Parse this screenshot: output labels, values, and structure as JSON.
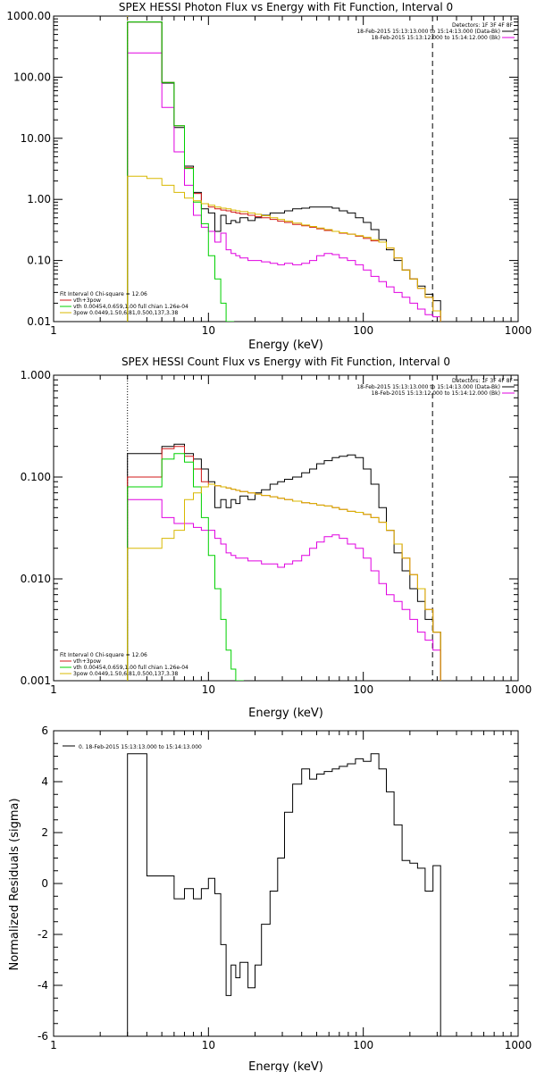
{
  "colors": {
    "black": "#000000",
    "red": "#d01818",
    "magenta": "#e000e0",
    "green": "#00d000",
    "yellow": "#d8b800",
    "background": "#ffffff"
  },
  "chart_data": [
    {
      "type": "line",
      "title": "SPEX HESSI Photon Flux vs Energy with Fit Function, Interval 0",
      "xlabel": "Energy (keV)",
      "ylabel": "",
      "xscale": "log",
      "yscale": "log",
      "xlim": [
        1,
        1000
      ],
      "ylim": [
        0.01,
        1000
      ],
      "xtick_labels": [
        "1",
        "10",
        "100",
        "1000"
      ],
      "ytick_labels": [
        "0.01",
        "0.10",
        "1.00",
        "10.00",
        "100.00",
        "1000.00"
      ],
      "legend_top": {
        "header": "Detectors: 1F 3F 4F 8F",
        "entries": [
          {
            "text": "18-Feb-2015 15:13:13.000 to 15:14:13.000 (Data-Bk)",
            "color": "#000000"
          },
          {
            "text": "18-Feb-2015 15:13:12.000 to 15:14:12.000 (Bk)",
            "color": "#e000e0"
          }
        ]
      },
      "legend_bottom": {
        "header": "Fit Interval 0   Chi-square = 12.06",
        "entries": [
          {
            "text": "vth+3pow",
            "color": "#d01818"
          },
          {
            "text": "vth 0.00454,0.659,1.00   full chian 1.26e-04",
            "color": "#00d000"
          },
          {
            "text": "3pow 0.0449,1.50,6.81,0.500,137,3.38",
            "color": "#d8b800"
          }
        ]
      },
      "series": [
        {
          "x": [
            3,
            4,
            5,
            6,
            7,
            8,
            9,
            10,
            11,
            12,
            13,
            14,
            15,
            16,
            18,
            20,
            22,
            25,
            28,
            31,
            35,
            40,
            45,
            50,
            56,
            63,
            70,
            79,
            89,
            100,
            112,
            126,
            141,
            158,
            178,
            200,
            224,
            251,
            282
          ],
          "y": [
            800,
            800,
            80,
            15,
            3.5,
            1.3,
            0.7,
            0.6,
            0.3,
            0.55,
            0.4,
            0.45,
            0.42,
            0.5,
            0.45,
            0.5,
            0.55,
            0.6,
            0.6,
            0.65,
            0.7,
            0.72,
            0.75,
            0.75,
            0.75,
            0.72,
            0.65,
            0.6,
            0.5,
            0.42,
            0.32,
            0.22,
            0.15,
            0.1,
            0.07,
            0.05,
            0.038,
            0.028,
            0.022
          ],
          "color": "#000000"
        },
        {
          "x": [
            3,
            4,
            5,
            6,
            7,
            8,
            9,
            10,
            11,
            12,
            13,
            14,
            15,
            16,
            18,
            20,
            22,
            25,
            28,
            31,
            35,
            40,
            45,
            50,
            56,
            63,
            70,
            79,
            89,
            100,
            112,
            126,
            141,
            158,
            178,
            200,
            224,
            251,
            282
          ],
          "y": [
            250,
            250,
            32,
            6,
            1.7,
            0.55,
            0.35,
            0.3,
            0.2,
            0.28,
            0.15,
            0.13,
            0.12,
            0.11,
            0.1,
            0.1,
            0.095,
            0.09,
            0.085,
            0.09,
            0.085,
            0.09,
            0.1,
            0.12,
            0.13,
            0.125,
            0.11,
            0.1,
            0.085,
            0.07,
            0.055,
            0.045,
            0.037,
            0.03,
            0.025,
            0.02,
            0.016,
            0.013,
            0.012
          ],
          "color": "#e000e0"
        },
        {
          "x": [
            3,
            4,
            5,
            6,
            7,
            8,
            9,
            10,
            11,
            12,
            13,
            14,
            15,
            16,
            18,
            20,
            22,
            25,
            28,
            31,
            35,
            40,
            45,
            50,
            56,
            63,
            70,
            79,
            89,
            100,
            112,
            126,
            141,
            158,
            178,
            200,
            224,
            251,
            282
          ],
          "y": [
            800,
            800,
            82,
            16,
            3.3,
            1.25,
            0.85,
            0.75,
            0.7,
            0.67,
            0.65,
            0.62,
            0.6,
            0.58,
            0.55,
            0.52,
            0.5,
            0.47,
            0.44,
            0.42,
            0.39,
            0.37,
            0.35,
            0.33,
            0.31,
            0.3,
            0.28,
            0.27,
            0.25,
            0.23,
            0.21,
            0.2,
            0.16,
            0.11,
            0.07,
            0.05,
            0.035,
            0.025,
            0.015
          ],
          "color": "#d01818"
        },
        {
          "x": [
            3,
            4,
            5,
            6,
            7,
            8,
            9,
            10,
            11,
            12,
            13
          ],
          "y": [
            800,
            800,
            82,
            16,
            3.2,
            0.9,
            0.4,
            0.12,
            0.05,
            0.02,
            0.01
          ],
          "color": "#00d000"
        },
        {
          "x": [
            3,
            4,
            5,
            6,
            7,
            8,
            9,
            10,
            11,
            12,
            13,
            14,
            15,
            16,
            18,
            20,
            22,
            25,
            28,
            31,
            35,
            40,
            45,
            50,
            56,
            63,
            70,
            79,
            89,
            100,
            112,
            126,
            141,
            158,
            178,
            200,
            224,
            251,
            282
          ],
          "y": [
            2.4,
            2.2,
            1.7,
            1.3,
            1.05,
            0.95,
            0.85,
            0.8,
            0.75,
            0.72,
            0.7,
            0.67,
            0.65,
            0.63,
            0.6,
            0.57,
            0.54,
            0.5,
            0.47,
            0.44,
            0.41,
            0.38,
            0.36,
            0.34,
            0.32,
            0.3,
            0.285,
            0.27,
            0.255,
            0.24,
            0.22,
            0.2,
            0.16,
            0.11,
            0.07,
            0.05,
            0.035,
            0.025,
            0.015
          ],
          "color": "#d8b800"
        }
      ],
      "vlines": [
        {
          "x": 3,
          "style": "dotted",
          "color": "#d8b800"
        },
        {
          "x": 280,
          "style": "dashed",
          "color": "#000000"
        }
      ]
    },
    {
      "type": "line",
      "title": "SPEX HESSI Count Flux vs Energy with Fit Function, Interval 0",
      "xlabel": "Energy (keV)",
      "ylabel": "",
      "xscale": "log",
      "yscale": "log",
      "xlim": [
        1,
        1000
      ],
      "ylim": [
        0.001,
        1
      ],
      "xtick_labels": [
        "1",
        "10",
        "100",
        "1000"
      ],
      "ytick_labels": [
        "0.001",
        "0.010",
        "0.100",
        "1.000"
      ],
      "legend_top": {
        "header": "Detectors: 1F 3F 4F 8F",
        "entries": [
          {
            "text": "18-Feb-2015 15:13:13.000 to 15:14:13.000 (Data-Bk)",
            "color": "#000000"
          },
          {
            "text": "18-Feb-2015 15:13:12.000 to 15:14:12.000 (Bk)",
            "color": "#e000e0"
          }
        ]
      },
      "legend_bottom": {
        "header": "Fit Interval 0   Chi-square = 12.06",
        "entries": [
          {
            "text": "vth+3pow",
            "color": "#d01818"
          },
          {
            "text": "vth 0.00454,0.659,1.00   full chian 1.26e-04",
            "color": "#00d000"
          },
          {
            "text": "3pow 0.0449,1.50,6.81,0.500,137,3.38",
            "color": "#d8b800"
          }
        ]
      },
      "series": [
        {
          "x": [
            3,
            4,
            5,
            6,
            7,
            8,
            9,
            10,
            11,
            12,
            13,
            14,
            15,
            16,
            18,
            20,
            22,
            25,
            28,
            31,
            35,
            40,
            45,
            50,
            56,
            63,
            70,
            79,
            89,
            100,
            112,
            126,
            141,
            158,
            178,
            200,
            224,
            251,
            282
          ],
          "y": [
            0.17,
            0.17,
            0.2,
            0.21,
            0.17,
            0.15,
            0.12,
            0.09,
            0.05,
            0.06,
            0.05,
            0.06,
            0.055,
            0.065,
            0.06,
            0.07,
            0.075,
            0.085,
            0.09,
            0.095,
            0.1,
            0.11,
            0.12,
            0.135,
            0.145,
            0.155,
            0.16,
            0.165,
            0.155,
            0.12,
            0.085,
            0.05,
            0.03,
            0.018,
            0.012,
            0.008,
            0.006,
            0.004,
            0.003
          ],
          "color": "#000000"
        },
        {
          "x": [
            3,
            4,
            5,
            6,
            7,
            8,
            9,
            10,
            11,
            12,
            13,
            14,
            15,
            16,
            18,
            20,
            22,
            25,
            28,
            31,
            35,
            40,
            45,
            50,
            56,
            63,
            70,
            79,
            89,
            100,
            112,
            126,
            141,
            158,
            178,
            200,
            224,
            251,
            282
          ],
          "y": [
            0.06,
            0.06,
            0.04,
            0.035,
            0.035,
            0.032,
            0.03,
            0.03,
            0.025,
            0.022,
            0.018,
            0.017,
            0.016,
            0.016,
            0.015,
            0.015,
            0.014,
            0.014,
            0.013,
            0.014,
            0.015,
            0.017,
            0.02,
            0.023,
            0.026,
            0.027,
            0.025,
            0.022,
            0.02,
            0.016,
            0.012,
            0.009,
            0.007,
            0.006,
            0.005,
            0.004,
            0.003,
            0.0025,
            0.002
          ],
          "color": "#e000e0"
        },
        {
          "x": [
            3,
            4,
            5,
            6,
            7,
            8,
            9,
            10,
            11,
            12,
            13,
            14,
            15,
            16,
            18,
            20,
            22,
            25,
            28,
            31,
            35,
            40,
            45,
            50,
            56,
            63,
            70,
            79,
            89,
            100,
            112,
            126,
            141,
            158,
            178,
            200,
            224,
            251,
            282
          ],
          "y": [
            0.1,
            0.1,
            0.19,
            0.2,
            0.16,
            0.12,
            0.09,
            0.085,
            0.082,
            0.08,
            0.078,
            0.076,
            0.074,
            0.072,
            0.07,
            0.068,
            0.066,
            0.064,
            0.062,
            0.06,
            0.058,
            0.056,
            0.055,
            0.053,
            0.052,
            0.05,
            0.048,
            0.046,
            0.045,
            0.043,
            0.04,
            0.036,
            0.03,
            0.022,
            0.016,
            0.011,
            0.008,
            0.005,
            0.003
          ],
          "color": "#d01818"
        },
        {
          "x": [
            3,
            4,
            5,
            6,
            7,
            8,
            9,
            10,
            11,
            12,
            13,
            14,
            15
          ],
          "y": [
            0.08,
            0.08,
            0.15,
            0.17,
            0.14,
            0.08,
            0.04,
            0.017,
            0.008,
            0.004,
            0.002,
            0.0013,
            0.001
          ],
          "color": "#00d000"
        },
        {
          "x": [
            3,
            4,
            5,
            6,
            7,
            8,
            9,
            10,
            11,
            12,
            13,
            14,
            15,
            16,
            18,
            20,
            22,
            25,
            28,
            31,
            35,
            40,
            45,
            50,
            56,
            63,
            70,
            79,
            89,
            100,
            112,
            126,
            141,
            158,
            178,
            200,
            224,
            251,
            282
          ],
          "y": [
            0.02,
            0.02,
            0.025,
            0.03,
            0.06,
            0.07,
            0.08,
            0.085,
            0.082,
            0.08,
            0.078,
            0.076,
            0.074,
            0.072,
            0.07,
            0.068,
            0.066,
            0.064,
            0.062,
            0.06,
            0.058,
            0.056,
            0.055,
            0.053,
            0.052,
            0.05,
            0.048,
            0.046,
            0.045,
            0.043,
            0.04,
            0.036,
            0.03,
            0.022,
            0.016,
            0.011,
            0.008,
            0.005,
            0.003
          ],
          "color": "#d8b800"
        }
      ],
      "vlines": [
        {
          "x": 3,
          "style": "dotted",
          "color": "#000000"
        },
        {
          "x": 280,
          "style": "dashed",
          "color": "#000000"
        }
      ]
    },
    {
      "type": "line",
      "title": "",
      "xlabel": "Energy (keV)",
      "ylabel": "Normalized Residuals (sigma)",
      "xscale": "log",
      "yscale": "linear",
      "xlim": [
        1,
        1000
      ],
      "ylim": [
        -6,
        6
      ],
      "xtick_labels": [
        "1",
        "10",
        "100",
        "1000"
      ],
      "ytick_labels": [
        "-6",
        "-4",
        "-2",
        "0",
        "2",
        "4",
        "6"
      ],
      "legend_top": {
        "header": "",
        "entries": [
          {
            "text": "0. 18-Feb-2015 15:13:13.000 to 15:14:13.000",
            "color": "#000000"
          }
        ]
      },
      "series": [
        {
          "x": [
            3,
            4,
            5,
            6,
            7,
            8,
            9,
            10,
            11,
            12,
            13,
            14,
            15,
            16,
            18,
            20,
            22,
            25,
            28,
            31,
            35,
            40,
            45,
            50,
            56,
            63,
            70,
            79,
            89,
            100,
            112,
            126,
            141,
            158,
            178,
            200,
            224,
            251,
            282
          ],
          "y": [
            5.1,
            0.3,
            0.3,
            -0.6,
            -0.2,
            -0.6,
            -0.2,
            0.2,
            -0.4,
            -2.4,
            -4.4,
            -3.2,
            -3.7,
            -3.1,
            -4.1,
            -3.2,
            -1.6,
            -0.3,
            1.0,
            2.8,
            3.9,
            4.5,
            4.1,
            4.3,
            4.4,
            4.5,
            4.6,
            4.7,
            4.9,
            4.8,
            5.1,
            4.5,
            3.6,
            2.3,
            0.9,
            0.8,
            0.6,
            -0.3,
            0.7
          ],
          "color": "#000000"
        }
      ]
    }
  ]
}
